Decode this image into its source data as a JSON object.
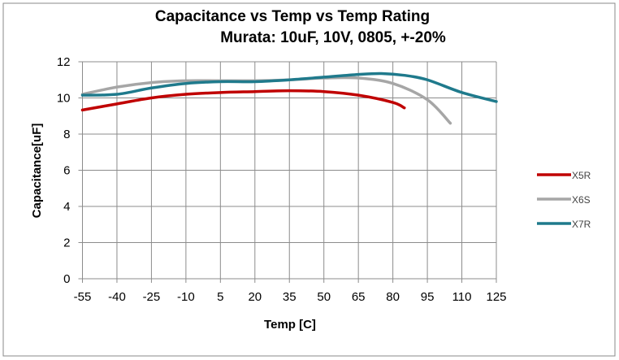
{
  "chart_data": {
    "type": "line",
    "title": "Capacitance vs Temp vs Temp Rating",
    "subtitle": "Murata: 10uF, 10V, 0805, +-20%",
    "xlabel": "Temp  [C]",
    "ylabel": "Capacitance[uF]",
    "xlim": [
      -55,
      125
    ],
    "ylim": [
      0,
      12
    ],
    "x_ticks": [
      -55,
      -40,
      -25,
      -10,
      5,
      20,
      35,
      50,
      65,
      80,
      95,
      110,
      125
    ],
    "y_ticks": [
      0,
      2,
      4,
      6,
      8,
      10,
      12
    ],
    "grid": true,
    "legend_position": "right",
    "series": [
      {
        "name": "X5R",
        "color": "#c00000",
        "x": [
          -55,
          -40,
          -25,
          -10,
          5,
          20,
          35,
          50,
          65,
          80,
          85
        ],
        "y": [
          9.33,
          9.67,
          10.0,
          10.2,
          10.3,
          10.35,
          10.4,
          10.35,
          10.15,
          9.75,
          9.45
        ]
      },
      {
        "name": "X6S",
        "color": "#a6a6a6",
        "x": [
          -55,
          -40,
          -25,
          -10,
          5,
          20,
          35,
          50,
          65,
          80,
          95,
          105
        ],
        "y": [
          10.2,
          10.6,
          10.85,
          10.95,
          10.95,
          10.95,
          11.0,
          11.1,
          11.1,
          10.8,
          9.9,
          8.6
        ]
      },
      {
        "name": "X7R",
        "color": "#1f7a8c",
        "x": [
          -55,
          -40,
          -25,
          -10,
          5,
          20,
          35,
          50,
          65,
          75,
          85,
          95,
          110,
          125
        ],
        "y": [
          10.15,
          10.2,
          10.55,
          10.8,
          10.9,
          10.9,
          11.0,
          11.15,
          11.3,
          11.35,
          11.25,
          11.0,
          10.3,
          9.8
        ]
      }
    ]
  }
}
